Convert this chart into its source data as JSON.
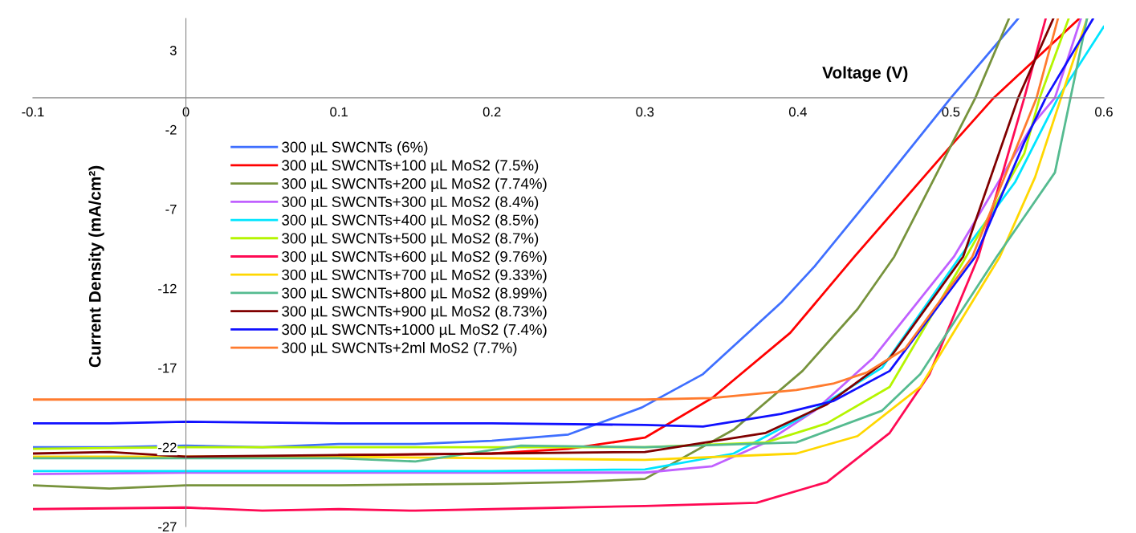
{
  "chart_data": {
    "type": "line",
    "xlabel": "Voltage (V)",
    "ylabel": "Current Density (mA/cm²)",
    "xlim": [
      -0.1,
      0.6
    ],
    "xticks": [
      -0.1,
      0,
      0.1,
      0.2,
      0.3,
      0.4,
      0.5,
      0.6
    ],
    "ylim": [
      -27,
      5
    ],
    "yticks": [
      3,
      -2,
      -7,
      -12,
      -17,
      -22,
      -27
    ],
    "grid": false,
    "legend": "top left",
    "marker": "none",
    "line_style": "solid",
    "series": [
      {
        "name": "300 µL SWCNTs (6%)",
        "color": "#3f6fff",
        "x": [
          -0.1,
          -0.05,
          0,
          0.05,
          0.1,
          0.15,
          0.2,
          0.25,
          0.298,
          0.338,
          0.389,
          0.411,
          0.45,
          0.5,
          0.544
        ],
        "values": [
          -22.0,
          -22.0,
          -21.9,
          -22.0,
          -21.8,
          -21.8,
          -21.6,
          -21.2,
          -19.5,
          -17.4,
          -12.9,
          -10.6,
          -6.0,
          0,
          5.0
        ]
      },
      {
        "name": "300 µL SWCNTs+100 µL MoS2 (7.5%)",
        "color": "#ff0000",
        "x": [
          0.1,
          0.2,
          0.25,
          0.3,
          0.344,
          0.395,
          0.437,
          0.502,
          0.528,
          0.584
        ],
        "values": [
          -22.5,
          -22.4,
          -22.1,
          -21.4,
          -18.9,
          -14.8,
          -10.0,
          -2.8,
          0,
          5.0
        ]
      },
      {
        "name": "300 µL SWCNTs+200 µL MoS2 (7.74%)",
        "color": "#77933c",
        "x": [
          -0.1,
          -0.05,
          0,
          0.1,
          0.2,
          0.25,
          0.3,
          0.358,
          0.403,
          0.439,
          0.463,
          0.516,
          0.538
        ],
        "values": [
          -24.4,
          -24.6,
          -24.4,
          -24.4,
          -24.3,
          -24.2,
          -24.0,
          -20.9,
          -17.2,
          -13.3,
          -10.0,
          0,
          5.0
        ]
      },
      {
        "name": "300 µL SWCNTs+300 µL MoS2 (8.4%)",
        "color": "#c060ff",
        "x": [
          -0.1,
          0,
          0.1,
          0.2,
          0.3,
          0.344,
          0.379,
          0.411,
          0.449,
          0.502,
          0.554,
          0.568,
          0.585
        ],
        "values": [
          -23.7,
          -23.6,
          -23.6,
          -23.6,
          -23.6,
          -23.2,
          -21.7,
          -19.7,
          -16.4,
          -10.0,
          -1.6,
          0,
          5.0
        ]
      },
      {
        "name": "300 µL SWCNTs+400 µL MoS2 (8.5%)",
        "color": "#00e5ff",
        "x": [
          -0.1,
          0,
          0.1,
          0.2,
          0.3,
          0.358,
          0.403,
          0.455,
          0.506,
          0.542,
          0.57,
          0.6
        ],
        "values": [
          -23.5,
          -23.5,
          -23.5,
          -23.5,
          -23.4,
          -22.4,
          -20.1,
          -17.0,
          -10.0,
          -5.3,
          0,
          4.5
        ]
      },
      {
        "name": "300 µL SWCNTs+500 µL MoS2 (8.7%)",
        "color": "#b5f500",
        "x": [
          -0.1,
          0,
          0.1,
          0.2,
          0.3,
          0.379,
          0.419,
          0.46,
          0.51,
          0.548,
          0.558,
          0.577
        ],
        "values": [
          -22.1,
          -22.0,
          -22.0,
          -22.0,
          -22.0,
          -21.7,
          -20.5,
          -18.2,
          -10.0,
          -3.5,
          0,
          5.0
        ]
      },
      {
        "name": "300 µL SWCNTs+600 µL MoS2 (9.76%)",
        "color": "#ff0a54",
        "x": [
          -0.1,
          0,
          0.05,
          0.1,
          0.15,
          0.2,
          0.3,
          0.373,
          0.419,
          0.46,
          0.486,
          0.518,
          0.548,
          0.562
        ],
        "values": [
          -25.9,
          -25.8,
          -26.0,
          -25.9,
          -26.0,
          -25.9,
          -25.7,
          -25.5,
          -24.2,
          -21.1,
          -17.4,
          -10.0,
          0,
          5.0
        ]
      },
      {
        "name": "300 µL SWCNTs+700 µL MoS2 (9.33%)",
        "color": "#ffd700",
        "x": [
          -0.1,
          0,
          0.1,
          0.2,
          0.3,
          0.399,
          0.439,
          0.48,
          0.532,
          0.555,
          0.589
        ],
        "values": [
          -22.6,
          -22.6,
          -22.6,
          -22.7,
          -22.8,
          -22.4,
          -21.3,
          -18.2,
          -10.0,
          -5.0,
          5.0
        ]
      },
      {
        "name": "300 µL SWCNTs+800 µL MoS2 (8.99%)",
        "color": "#55bb90",
        "x": [
          -0.1,
          0,
          0.1,
          0.15,
          0.219,
          0.3,
          0.399,
          0.455,
          0.48,
          0.53,
          0.568,
          0.589
        ],
        "values": [
          -22.7,
          -22.7,
          -22.7,
          -22.9,
          -21.9,
          -22.0,
          -21.7,
          -19.7,
          -17.4,
          -10.0,
          -4.7,
          5.0
        ]
      },
      {
        "name": "300 µL SWCNTs+900 µL MoS2 (8.73%)",
        "color": "#800000",
        "x": [
          -0.1,
          -0.05,
          0,
          0.1,
          0.2,
          0.3,
          0.379,
          0.419,
          0.46,
          0.508,
          0.544,
          0.567
        ],
        "values": [
          -22.4,
          -22.3,
          -22.6,
          -22.5,
          -22.4,
          -22.3,
          -21.1,
          -19.3,
          -16.4,
          -10.0,
          0,
          5.0
        ]
      },
      {
        "name": "300 µL SWCNTs+1000 µL MoS2 (7.4%)",
        "color": "#1010ff",
        "x": [
          -0.1,
          -0.05,
          0,
          0.1,
          0.2,
          0.3,
          0.338,
          0.389,
          0.423,
          0.46,
          0.516,
          0.548,
          0.562,
          0.593
        ],
        "values": [
          -20.5,
          -20.5,
          -20.4,
          -20.5,
          -20.5,
          -20.6,
          -20.7,
          -19.9,
          -19.1,
          -17.2,
          -10.0,
          -2.8,
          0,
          5.0
        ]
      },
      {
        "name": "300 µL SWCNTs+2ml MoS2 (7.7%)",
        "color": "#ff7b2e",
        "x": [
          -0.1,
          0,
          0.1,
          0.2,
          0.3,
          0.344,
          0.399,
          0.423,
          0.445,
          0.47,
          0.514,
          0.556,
          0.57
        ],
        "values": [
          -19.0,
          -19.0,
          -19.0,
          -19.0,
          -19.0,
          -18.9,
          -18.4,
          -18.0,
          -17.3,
          -15.8,
          -10.0,
          0,
          5.0
        ]
      }
    ]
  }
}
